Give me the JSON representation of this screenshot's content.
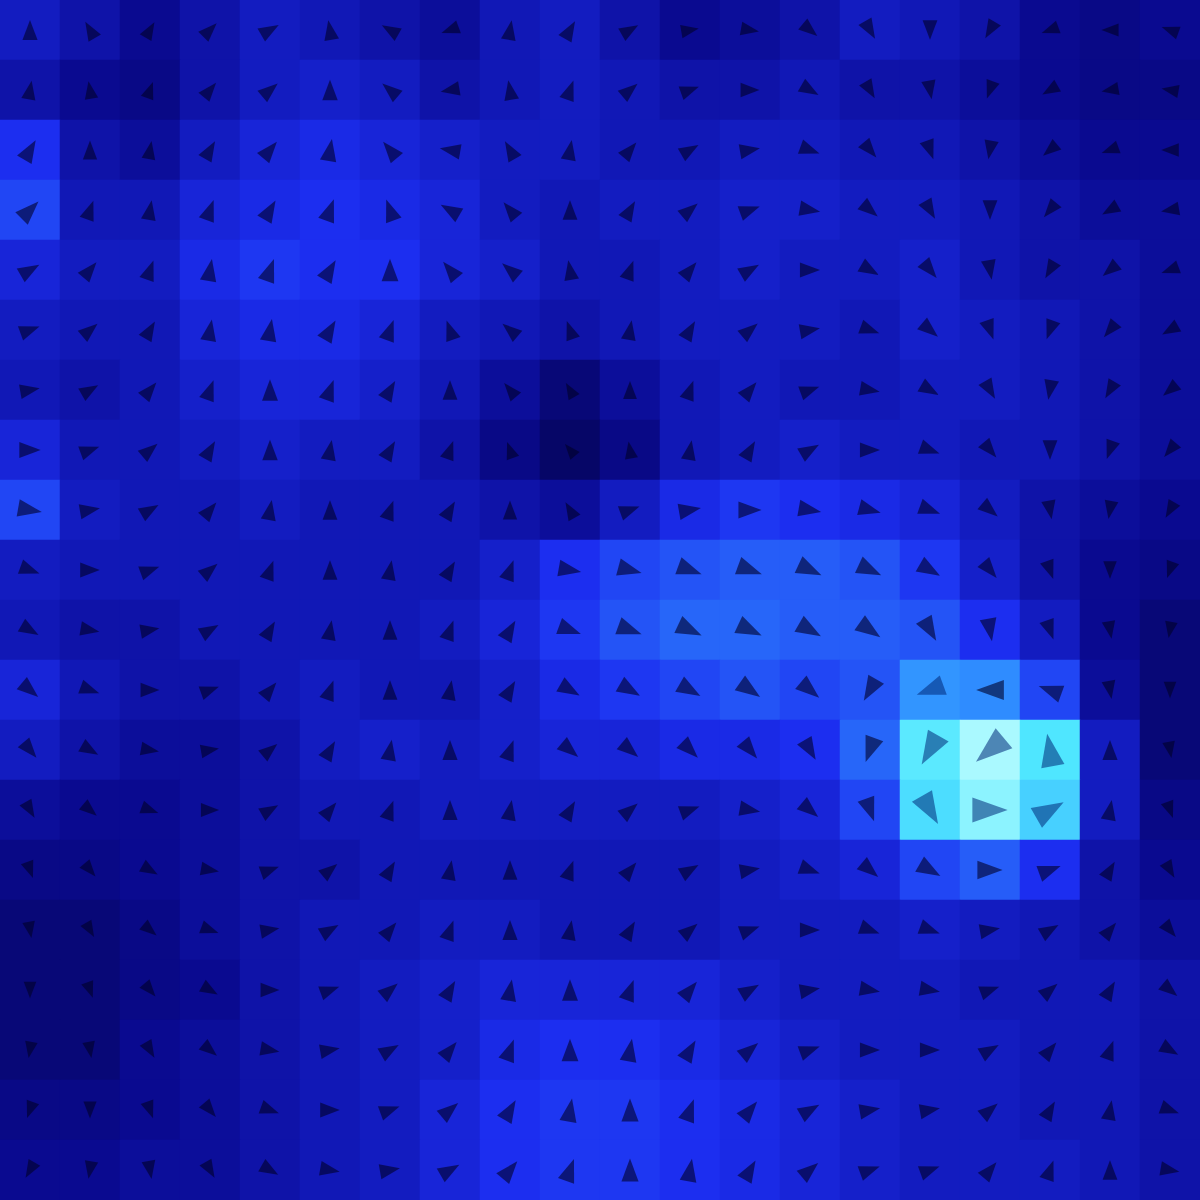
{
  "chart_data": {
    "type": "quiver",
    "tick_labels": false,
    "grid": false,
    "zlim": [
      0,
      100
    ],
    "magnitude": [
      [
        30,
        25,
        20,
        25,
        30,
        28,
        25,
        22,
        28,
        30,
        25,
        20,
        22,
        25,
        30,
        28,
        25,
        20,
        18,
        20
      ],
      [
        25,
        20,
        18,
        25,
        30,
        32,
        30,
        25,
        28,
        30,
        28,
        25,
        25,
        28,
        25,
        25,
        22,
        20,
        18,
        18
      ],
      [
        40,
        25,
        22,
        30,
        35,
        38,
        35,
        32,
        30,
        30,
        28,
        28,
        30,
        30,
        28,
        28,
        25,
        22,
        20,
        20
      ],
      [
        45,
        28,
        28,
        35,
        38,
        40,
        38,
        35,
        30,
        28,
        30,
        30,
        32,
        32,
        30,
        30,
        28,
        25,
        22,
        22
      ],
      [
        35,
        30,
        30,
        38,
        42,
        40,
        40,
        35,
        32,
        28,
        28,
        30,
        32,
        30,
        30,
        32,
        28,
        25,
        25,
        22
      ],
      [
        30,
        28,
        28,
        35,
        38,
        38,
        35,
        30,
        28,
        25,
        28,
        30,
        30,
        30,
        28,
        32,
        30,
        28,
        25,
        22
      ],
      [
        28,
        25,
        28,
        32,
        35,
        35,
        32,
        28,
        22,
        15,
        22,
        28,
        30,
        28,
        28,
        30,
        30,
        28,
        25,
        22
      ],
      [
        35,
        28,
        28,
        30,
        32,
        30,
        30,
        25,
        18,
        12,
        18,
        28,
        30,
        32,
        30,
        30,
        28,
        28,
        25,
        22
      ],
      [
        45,
        30,
        28,
        28,
        30,
        28,
        28,
        28,
        25,
        22,
        30,
        38,
        42,
        40,
        38,
        35,
        30,
        25,
        22,
        20
      ],
      [
        30,
        28,
        28,
        28,
        28,
        28,
        28,
        28,
        32,
        40,
        45,
        48,
        50,
        50,
        48,
        42,
        32,
        25,
        20,
        18
      ],
      [
        28,
        25,
        25,
        28,
        28,
        28,
        28,
        30,
        35,
        42,
        48,
        52,
        52,
        50,
        50,
        48,
        40,
        30,
        20,
        15
      ],
      [
        35,
        28,
        25,
        25,
        28,
        30,
        28,
        28,
        32,
        38,
        42,
        45,
        48,
        45,
        48,
        62,
        60,
        45,
        22,
        15
      ],
      [
        30,
        25,
        22,
        22,
        25,
        30,
        32,
        30,
        32,
        35,
        35,
        38,
        38,
        40,
        52,
        82,
        95,
        80,
        30,
        15
      ],
      [
        22,
        20,
        20,
        22,
        25,
        28,
        28,
        30,
        30,
        30,
        30,
        30,
        32,
        35,
        45,
        78,
        90,
        75,
        30,
        18
      ],
      [
        18,
        18,
        20,
        22,
        25,
        25,
        28,
        28,
        28,
        28,
        28,
        28,
        30,
        32,
        35,
        45,
        50,
        40,
        25,
        20
      ],
      [
        15,
        15,
        18,
        22,
        25,
        28,
        28,
        30,
        30,
        28,
        28,
        28,
        30,
        30,
        30,
        32,
        30,
        28,
        25,
        22
      ],
      [
        15,
        15,
        18,
        20,
        25,
        28,
        30,
        32,
        35,
        35,
        35,
        35,
        32,
        30,
        30,
        30,
        28,
        28,
        28,
        25
      ],
      [
        15,
        15,
        20,
        22,
        25,
        28,
        30,
        32,
        38,
        40,
        40,
        38,
        35,
        32,
        30,
        30,
        30,
        28,
        28,
        25
      ],
      [
        18,
        18,
        20,
        22,
        25,
        28,
        30,
        35,
        40,
        42,
        42,
        40,
        38,
        35,
        32,
        30,
        30,
        28,
        28,
        25
      ],
      [
        20,
        20,
        22,
        22,
        25,
        28,
        30,
        35,
        40,
        42,
        42,
        40,
        38,
        35,
        32,
        30,
        30,
        30,
        28,
        25
      ]
    ],
    "angle": [
      [
        90,
        120,
        60,
        45,
        30,
        100,
        150,
        200,
        80,
        60,
        30,
        10,
        350,
        320,
        300,
        270,
        240,
        200,
        180,
        160
      ],
      [
        80,
        100,
        70,
        50,
        40,
        90,
        140,
        190,
        100,
        70,
        40,
        20,
        0,
        330,
        300,
        280,
        250,
        210,
        190,
        170
      ],
      [
        60,
        90,
        80,
        60,
        50,
        80,
        130,
        170,
        120,
        80,
        50,
        30,
        10,
        340,
        310,
        290,
        260,
        220,
        200,
        180
      ],
      [
        45,
        70,
        80,
        70,
        60,
        70,
        110,
        150,
        130,
        90,
        60,
        40,
        20,
        350,
        320,
        300,
        270,
        230,
        210,
        190
      ],
      [
        30,
        50,
        70,
        80,
        70,
        60,
        90,
        130,
        140,
        100,
        70,
        50,
        30,
        0,
        330,
        310,
        280,
        240,
        220,
        200
      ],
      [
        20,
        40,
        60,
        80,
        80,
        60,
        70,
        110,
        140,
        110,
        80,
        60,
        40,
        10,
        340,
        320,
        290,
        250,
        230,
        210
      ],
      [
        10,
        30,
        50,
        70,
        90,
        70,
        60,
        90,
        130,
        120,
        90,
        70,
        50,
        20,
        350,
        330,
        300,
        260,
        240,
        220
      ],
      [
        0,
        20,
        40,
        60,
        90,
        80,
        60,
        70,
        110,
        130,
        100,
        80,
        60,
        30,
        0,
        340,
        310,
        270,
        250,
        230
      ],
      [
        350,
        10,
        30,
        50,
        80,
        90,
        70,
        60,
        90,
        120,
        20,
        10,
        0,
        350,
        345,
        340,
        320,
        280,
        260,
        240
      ],
      [
        340,
        0,
        20,
        40,
        70,
        90,
        80,
        60,
        70,
        350,
        345,
        340,
        340,
        335,
        335,
        330,
        310,
        290,
        270,
        250
      ],
      [
        330,
        350,
        10,
        30,
        60,
        80,
        90,
        70,
        60,
        340,
        340,
        335,
        335,
        330,
        325,
        300,
        280,
        290,
        280,
        260
      ],
      [
        320,
        340,
        0,
        20,
        50,
        70,
        90,
        80,
        60,
        330,
        330,
        330,
        325,
        320,
        240,
        200,
        180,
        160,
        280,
        270
      ],
      [
        310,
        330,
        350,
        10,
        40,
        60,
        80,
        90,
        70,
        320,
        320,
        315,
        310,
        300,
        250,
        240,
        220,
        100,
        90,
        280
      ],
      [
        300,
        320,
        340,
        0,
        30,
        50,
        70,
        90,
        80,
        60,
        40,
        20,
        350,
        320,
        290,
        300,
        0,
        30,
        80,
        290
      ],
      [
        290,
        310,
        330,
        350,
        20,
        40,
        60,
        80,
        90,
        70,
        50,
        30,
        10,
        340,
        320,
        330,
        0,
        20,
        60,
        300
      ],
      [
        280,
        300,
        320,
        340,
        10,
        30,
        50,
        70,
        90,
        80,
        60,
        40,
        20,
        0,
        340,
        340,
        10,
        30,
        50,
        310
      ],
      [
        270,
        290,
        310,
        330,
        0,
        20,
        40,
        60,
        80,
        90,
        70,
        50,
        30,
        10,
        350,
        350,
        20,
        40,
        60,
        320
      ],
      [
        260,
        280,
        300,
        320,
        350,
        10,
        30,
        50,
        70,
        90,
        80,
        60,
        40,
        20,
        0,
        0,
        30,
        50,
        70,
        330
      ],
      [
        250,
        270,
        290,
        310,
        340,
        0,
        20,
        40,
        60,
        80,
        90,
        70,
        50,
        30,
        10,
        10,
        40,
        60,
        80,
        340
      ],
      [
        240,
        260,
        280,
        300,
        330,
        350,
        10,
        30,
        50,
        70,
        90,
        80,
        60,
        40,
        20,
        20,
        50,
        70,
        90,
        350
      ]
    ]
  }
}
